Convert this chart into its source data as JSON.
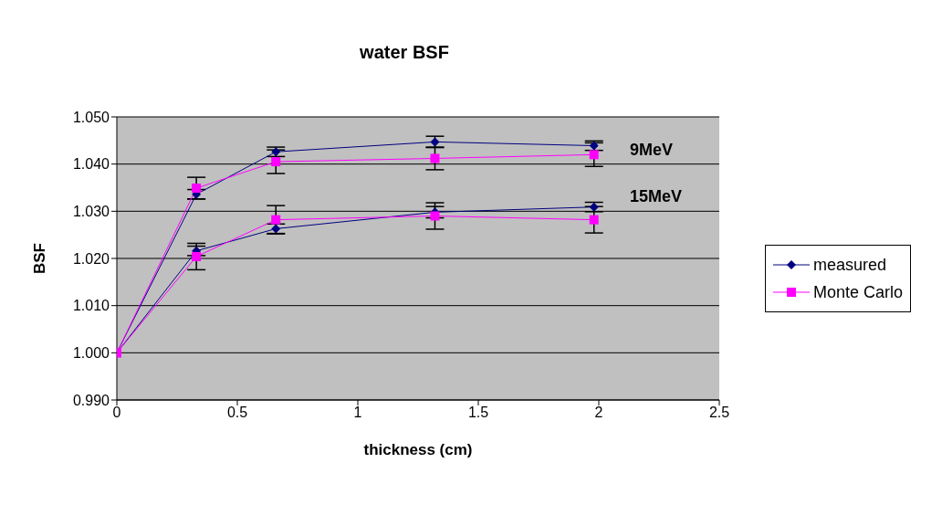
{
  "chart_data": {
    "type": "line",
    "title": "water BSF",
    "xlabel": "thickness (cm)",
    "ylabel": "BSF",
    "x": [
      0,
      0.33,
      0.66,
      1.32,
      1.98
    ],
    "series": [
      {
        "name": "measured",
        "color": "#000080",
        "marker": "diamond",
        "values": [
          1.0,
          1.0336,
          1.0426,
          1.0447,
          1.0439
        ],
        "errors": [
          null,
          0.001,
          0.001,
          0.0012,
          0.001
        ]
      },
      {
        "name": "Monte Carlo",
        "color": "#ff00ff",
        "marker": "square",
        "values": [
          1.0,
          1.0349,
          1.0405,
          1.0412,
          1.042
        ],
        "errors": [
          null,
          0.0023,
          0.0025,
          0.0024,
          0.0025
        ]
      },
      {
        "color": "#000080",
        "marker": "diamond",
        "values": [
          1.0,
          1.0216,
          1.0263,
          1.0298,
          1.0309
        ],
        "errors": [
          null,
          0.001,
          0.001,
          0.0012,
          0.001
        ]
      },
      {
        "color": "#ff00ff",
        "marker": "square",
        "values": [
          1.0,
          1.0204,
          1.0282,
          1.029,
          1.0282
        ],
        "errors": [
          null,
          0.0028,
          0.003,
          0.0028,
          0.0028
        ]
      }
    ],
    "annotations": [
      "9MeV",
      "15MeV"
    ],
    "xlim": [
      0,
      2.5
    ],
    "xticks": [
      0,
      0.5,
      1,
      1.5,
      2,
      2.5
    ],
    "ylim": [
      0.99,
      1.05
    ],
    "yticks": [
      {
        "value": 0.99,
        "label": "0.990"
      },
      {
        "value": 1.0,
        "label": "1.000"
      },
      {
        "value": 1.01,
        "label": "1.010"
      },
      {
        "value": 1.02,
        "label": "1.020"
      },
      {
        "value": 1.03,
        "label": "1.030"
      },
      {
        "value": 1.04,
        "label": "1.040"
      },
      {
        "value": 1.05,
        "label": "1.050"
      }
    ],
    "grid": "y",
    "legend": "right"
  }
}
